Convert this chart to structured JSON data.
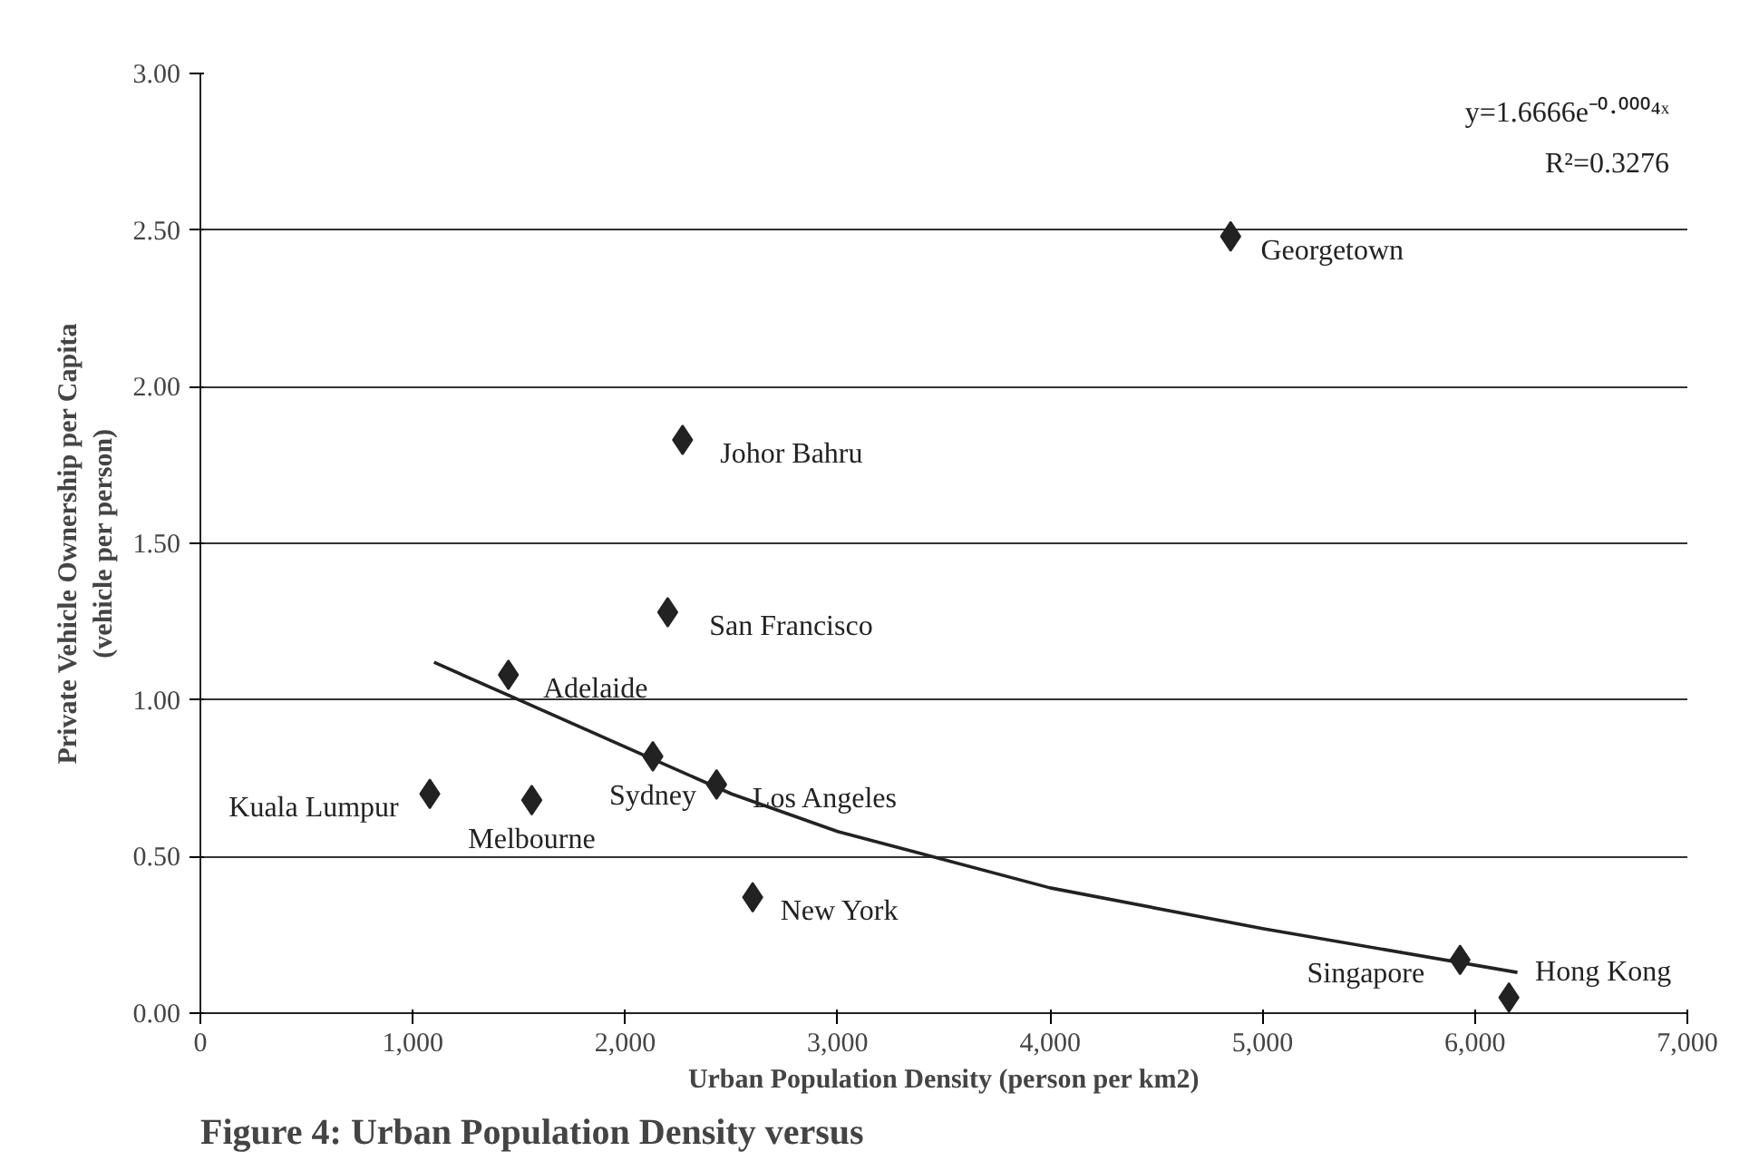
{
  "chart_data": {
    "type": "scatter",
    "xlabel": "Urban Population Density (person per km2)",
    "ylabel": "Private Vehicle Ownership per Capita\n(vehicle per person)",
    "xlim": [
      0,
      7000
    ],
    "xticks": [
      0,
      {
        "value": 1000,
        "label": "1,000"
      },
      {
        "value": 2000,
        "label": "2,000"
      },
      {
        "value": 3000,
        "label": "3,000"
      },
      {
        "value": 4000,
        "label": "4,000"
      },
      {
        "value": 5000,
        "label": "5,000"
      },
      {
        "value": 6000,
        "label": "6,000"
      },
      {
        "value": 7000,
        "label": "7,000"
      }
    ],
    "ylim": [
      0,
      3
    ],
    "yticks": [
      {
        "value": 0,
        "label": "0.00"
      },
      {
        "value": 0.5,
        "label": "0.50"
      },
      {
        "value": 1,
        "label": "1.00"
      },
      {
        "value": 1.5,
        "label": "1.50"
      },
      {
        "value": 2,
        "label": "2.00"
      },
      {
        "value": 2.5,
        "label": "2.50"
      },
      {
        "value": 3,
        "label": "3.00"
      }
    ],
    "grid": "y",
    "marker": "diamond",
    "series": [
      {
        "color": "#222222",
        "x": [
          4850,
          2270,
          1450,
          2200,
          2130,
          2430,
          1080,
          1560,
          2600,
          5930,
          6160
        ],
        "values": [
          2.48,
          1.83,
          1.08,
          1.28,
          0.82,
          0.73,
          0.7,
          0.68,
          0.37,
          0.17,
          0.05
        ]
      },
      {
        "type": "line",
        "color": "#222222",
        "marker": "none",
        "x": [
          1100,
          1500,
          2100,
          2500,
          3000,
          4000,
          5000,
          6200
        ],
        "values": [
          1.12,
          1.0,
          0.82,
          0.7,
          0.58,
          0.4,
          0.27,
          0.13
        ]
      }
    ],
    "annotations": [
      {
        "text": "Georgetown",
        "x": 4850,
        "y": 2.48
      },
      {
        "text": "Johor Bahru",
        "x": 2270,
        "y": 1.83
      },
      {
        "text": "Adelaide",
        "x": 1450,
        "y": 1.08
      },
      {
        "text": "San Francisco",
        "x": 2200,
        "y": 1.28
      },
      {
        "text": "Sydney",
        "x": 2130,
        "y": 0.82
      },
      {
        "text": "Los Angeles",
        "x": 2430,
        "y": 0.73
      },
      {
        "text": "Kuala Lumpur",
        "x": 1080,
        "y": 0.7
      },
      {
        "text": "Melbourne",
        "x": 1560,
        "y": 0.68
      },
      {
        "text": "New York",
        "x": 2600,
        "y": 0.37
      },
      {
        "text": "Singapore",
        "x": 5930,
        "y": 0.17
      },
      {
        "text": "Hong Kong",
        "x": 6160,
        "y": 0.05
      },
      "y=1.6666e⁻⁰·⁰⁰⁰⁴ˣ",
      "R²=0.3276",
      "Figure 4: Urban Population Density versus"
    ]
  }
}
